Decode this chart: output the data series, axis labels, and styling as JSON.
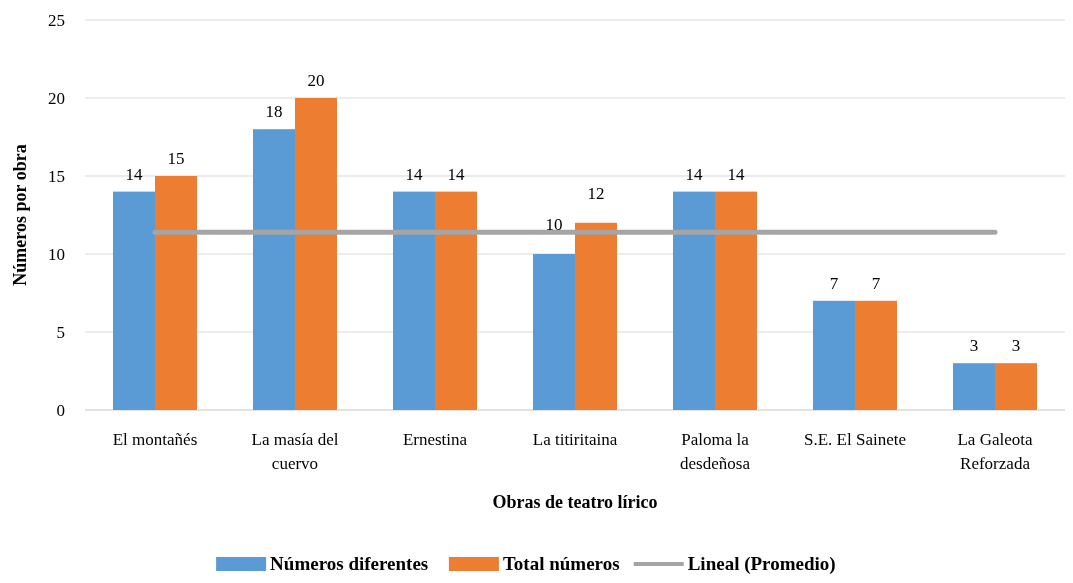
{
  "chart_data": {
    "type": "bar",
    "xlabel": "Obras de teatro lírico",
    "ylabel": "Números por obra",
    "categories": [
      "El montañés",
      "La masía del cuervo",
      "Ernestina",
      "La titiritaina",
      "Paloma la desdeñosa",
      "S.E. El Sainete",
      "La Galeota Reforzada"
    ],
    "series": [
      {
        "name": "Números diferentes",
        "color": "#5b9bd5",
        "values": [
          14,
          18,
          14,
          10,
          14,
          7,
          3
        ],
        "value_labels": [
          "14",
          "18",
          "14",
          "10",
          "14",
          "7",
          "3"
        ]
      },
      {
        "name": "Total números",
        "color": "#ed7d31",
        "values": [
          15,
          20,
          14,
          12,
          14,
          7,
          3
        ],
        "value_labels": [
          "15",
          "20",
          "14",
          "12",
          "14",
          "7",
          "3"
        ]
      },
      {
        "name": "Lineal (Promedio)",
        "type": "line",
        "color": "#a5a5a5",
        "values": [
          11.4,
          11.4,
          11.4,
          11.4,
          11.4,
          11.4,
          11.4
        ]
      }
    ],
    "ylim": [
      0,
      25
    ],
    "yticks": [
      0,
      5,
      10,
      15,
      20,
      25
    ],
    "grid": "y",
    "legend": "bottom"
  }
}
